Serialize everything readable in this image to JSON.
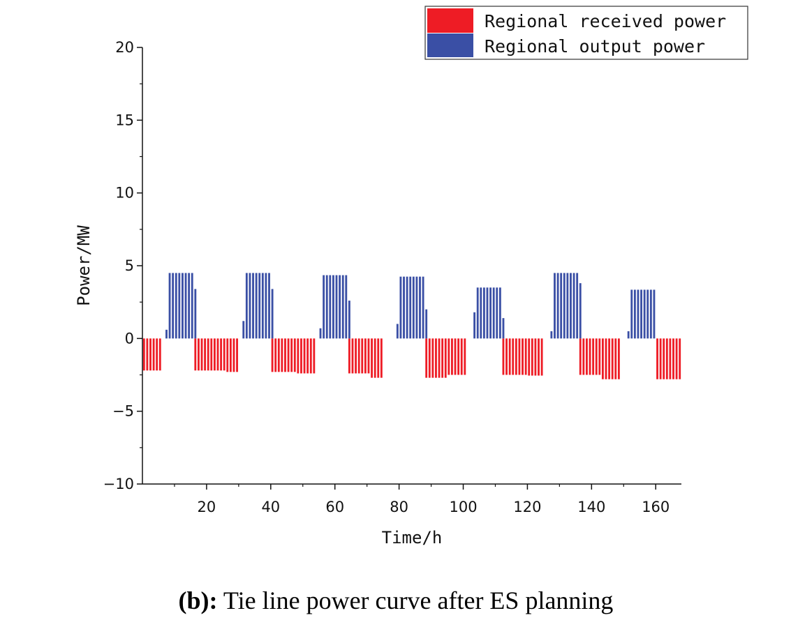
{
  "chart_data": {
    "type": "bar",
    "title": "",
    "caption": {
      "label": "(b):",
      "text": " Tie line power curve after ES planning"
    },
    "xlabel": "Time/h",
    "ylabel": "Power/MW",
    "xlim": [
      0,
      168
    ],
    "ylim": [
      -10,
      20
    ],
    "xticks": [
      20,
      40,
      60,
      80,
      100,
      120,
      140,
      160
    ],
    "yticks": [
      -10,
      -5,
      0,
      5,
      10,
      15,
      20
    ],
    "ytick_labels": [
      "−10",
      "−5",
      "0",
      "5",
      "10",
      "15",
      "20"
    ],
    "legend_position": "top-right",
    "series": [
      {
        "name": "Regional received power",
        "color": "#ee1c25",
        "values": [
          [
            1,
            -2.2
          ],
          [
            2,
            -2.2
          ],
          [
            3,
            -2.2
          ],
          [
            4,
            -2.2
          ],
          [
            5,
            -2.2
          ],
          [
            6,
            -2.2
          ],
          [
            17,
            -2.2
          ],
          [
            18,
            -2.2
          ],
          [
            19,
            -2.2
          ],
          [
            20,
            -2.2
          ],
          [
            21,
            -2.2
          ],
          [
            22,
            -2.2
          ],
          [
            23,
            -2.2
          ],
          [
            24,
            -2.2
          ],
          [
            25,
            -2.2
          ],
          [
            26,
            -2.2
          ],
          [
            27,
            -2.3
          ],
          [
            28,
            -2.3
          ],
          [
            29,
            -2.3
          ],
          [
            30,
            -2.3
          ],
          [
            41,
            -2.3
          ],
          [
            42,
            -2.3
          ],
          [
            43,
            -2.3
          ],
          [
            44,
            -2.3
          ],
          [
            45,
            -2.3
          ],
          [
            46,
            -2.3
          ],
          [
            47,
            -2.3
          ],
          [
            48,
            -2.3
          ],
          [
            49,
            -2.4
          ],
          [
            50,
            -2.4
          ],
          [
            51,
            -2.4
          ],
          [
            52,
            -2.4
          ],
          [
            53,
            -2.4
          ],
          [
            54,
            -2.4
          ],
          [
            65,
            -2.4
          ],
          [
            66,
            -2.4
          ],
          [
            67,
            -2.4
          ],
          [
            68,
            -2.4
          ],
          [
            69,
            -2.4
          ],
          [
            70,
            -2.4
          ],
          [
            71,
            -2.4
          ],
          [
            72,
            -2.7
          ],
          [
            73,
            -2.7
          ],
          [
            74,
            -2.7
          ],
          [
            75,
            -2.7
          ],
          [
            89,
            -2.7
          ],
          [
            90,
            -2.7
          ],
          [
            91,
            -2.7
          ],
          [
            92,
            -2.7
          ],
          [
            93,
            -2.7
          ],
          [
            94,
            -2.7
          ],
          [
            95,
            -2.7
          ],
          [
            96,
            -2.5
          ],
          [
            97,
            -2.5
          ],
          [
            98,
            -2.5
          ],
          [
            99,
            -2.5
          ],
          [
            100,
            -2.5
          ],
          [
            101,
            -2.5
          ],
          [
            113,
            -2.5
          ],
          [
            114,
            -2.5
          ],
          [
            115,
            -2.5
          ],
          [
            116,
            -2.5
          ],
          [
            117,
            -2.5
          ],
          [
            118,
            -2.5
          ],
          [
            119,
            -2.5
          ],
          [
            120,
            -2.5
          ],
          [
            121,
            -2.55
          ],
          [
            122,
            -2.55
          ],
          [
            123,
            -2.55
          ],
          [
            124,
            -2.55
          ],
          [
            125,
            -2.55
          ],
          [
            137,
            -2.5
          ],
          [
            138,
            -2.5
          ],
          [
            139,
            -2.5
          ],
          [
            140,
            -2.5
          ],
          [
            141,
            -2.5
          ],
          [
            142,
            -2.5
          ],
          [
            143,
            -2.5
          ],
          [
            144,
            -2.8
          ],
          [
            145,
            -2.8
          ],
          [
            146,
            -2.8
          ],
          [
            147,
            -2.8
          ],
          [
            148,
            -2.8
          ],
          [
            149,
            -2.8
          ],
          [
            161,
            -2.8
          ],
          [
            162,
            -2.8
          ],
          [
            163,
            -2.8
          ],
          [
            164,
            -2.8
          ],
          [
            165,
            -2.8
          ],
          [
            166,
            -2.8
          ],
          [
            167,
            -2.8
          ],
          [
            168,
            -2.8
          ]
        ]
      },
      {
        "name": "Regional output power",
        "color": "#3a4fa5",
        "values": [
          [
            8,
            0.6
          ],
          [
            9,
            4.5
          ],
          [
            10,
            4.5
          ],
          [
            11,
            4.5
          ],
          [
            12,
            4.5
          ],
          [
            13,
            4.5
          ],
          [
            14,
            4.5
          ],
          [
            15,
            4.5
          ],
          [
            16,
            4.5
          ],
          [
            17,
            3.4
          ],
          [
            32,
            1.2
          ],
          [
            33,
            4.5
          ],
          [
            34,
            4.5
          ],
          [
            35,
            4.5
          ],
          [
            36,
            4.5
          ],
          [
            37,
            4.5
          ],
          [
            38,
            4.5
          ],
          [
            39,
            4.5
          ],
          [
            40,
            4.5
          ],
          [
            41,
            3.4
          ],
          [
            56,
            0.7
          ],
          [
            57,
            4.35
          ],
          [
            58,
            4.35
          ],
          [
            59,
            4.35
          ],
          [
            60,
            4.35
          ],
          [
            61,
            4.35
          ],
          [
            62,
            4.35
          ],
          [
            63,
            4.35
          ],
          [
            64,
            4.35
          ],
          [
            65,
            2.6
          ],
          [
            80,
            1.0
          ],
          [
            81,
            4.25
          ],
          [
            82,
            4.25
          ],
          [
            83,
            4.25
          ],
          [
            84,
            4.25
          ],
          [
            85,
            4.25
          ],
          [
            86,
            4.25
          ],
          [
            87,
            4.25
          ],
          [
            88,
            4.25
          ],
          [
            89,
            2.0
          ],
          [
            104,
            1.8
          ],
          [
            105,
            3.5
          ],
          [
            106,
            3.5
          ],
          [
            107,
            3.5
          ],
          [
            108,
            3.5
          ],
          [
            109,
            3.5
          ],
          [
            110,
            3.5
          ],
          [
            111,
            3.5
          ],
          [
            112,
            3.5
          ],
          [
            113,
            1.4
          ],
          [
            128,
            0.5
          ],
          [
            129,
            4.5
          ],
          [
            130,
            4.5
          ],
          [
            131,
            4.5
          ],
          [
            132,
            4.5
          ],
          [
            133,
            4.5
          ],
          [
            134,
            4.5
          ],
          [
            135,
            4.5
          ],
          [
            136,
            4.5
          ],
          [
            137,
            3.8
          ],
          [
            152,
            0.5
          ],
          [
            153,
            3.35
          ],
          [
            154,
            3.35
          ],
          [
            155,
            3.35
          ],
          [
            156,
            3.35
          ],
          [
            157,
            3.35
          ],
          [
            158,
            3.35
          ],
          [
            159,
            3.35
          ],
          [
            160,
            3.35
          ]
        ]
      }
    ]
  }
}
